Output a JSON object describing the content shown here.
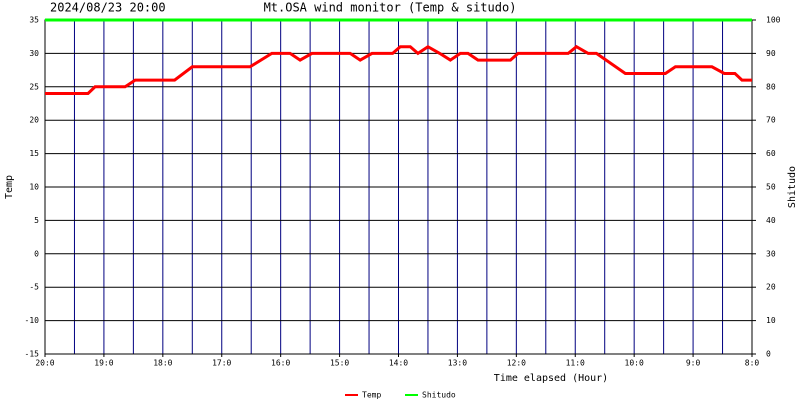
{
  "chart_data": {
    "type": "line",
    "title": "Mt.OSA wind monitor (Temp & situdo)",
    "subtitle": "2024/08/23 20:00",
    "x_label": "Time elapsed (Hour)",
    "y_label": "Temp",
    "y2_label": "Shitudo",
    "xlim": [
      0,
      12
    ],
    "xticks": [
      {
        "value": 0,
        "label": "20:0"
      },
      {
        "value": 1,
        "label": "19:0"
      },
      {
        "value": 2,
        "label": "18:0"
      },
      {
        "value": 3,
        "label": "17:0"
      },
      {
        "value": 4,
        "label": "16:0"
      },
      {
        "value": 5,
        "label": "15:0"
      },
      {
        "value": 6,
        "label": "14:0"
      },
      {
        "value": 7,
        "label": "13:0"
      },
      {
        "value": 8,
        "label": "12:0"
      },
      {
        "value": 9,
        "label": "11:0"
      },
      {
        "value": 10,
        "label": "10:0"
      },
      {
        "value": 11,
        "label": "9:0"
      },
      {
        "value": 12,
        "label": "8:0"
      }
    ],
    "xgrid": [
      0,
      0.5,
      1,
      1.5,
      2,
      2.5,
      3,
      3.5,
      4,
      4.5,
      5,
      5.5,
      6,
      6.5,
      7,
      7.5,
      8,
      8.5,
      9,
      9.5,
      10,
      10.5,
      11,
      11.5,
      12
    ],
    "ylim": [
      -15,
      35
    ],
    "yticks": [
      -15,
      -10,
      -5,
      0,
      5,
      10,
      15,
      20,
      25,
      30,
      35
    ],
    "y2lim": [
      0,
      100
    ],
    "y2ticks": [
      0,
      10,
      20,
      30,
      40,
      50,
      60,
      70,
      80,
      90,
      100
    ],
    "grid": true,
    "series": [
      {
        "name": "Temp",
        "color": "#ff0000",
        "x": [
          0,
          0.73,
          0.85,
          1.36,
          1.53,
          2.2,
          2.5,
          3.48,
          3.85,
          4.16,
          4.33,
          4.53,
          5.18,
          5.35,
          5.55,
          5.9,
          6.03,
          6.2,
          6.33,
          6.5,
          6.7,
          6.88,
          7.05,
          7.18,
          7.35,
          7.9,
          8.03,
          8.88,
          9.02,
          9.22,
          9.36,
          9.85,
          10.53,
          10.7,
          11.32,
          11.53,
          11.71,
          11.83,
          12
        ],
        "values": [
          24,
          24,
          25,
          25,
          26,
          26,
          28,
          28,
          30,
          30,
          29,
          30,
          30,
          29,
          30,
          30,
          31,
          31,
          30,
          31,
          30,
          29,
          30,
          30,
          29,
          29,
          30,
          30,
          31,
          30,
          30,
          27,
          27,
          28,
          28,
          27,
          27,
          26,
          26
        ]
      },
      {
        "name": "Shitudo",
        "color": "#00ff00",
        "axis": "y2",
        "x": [
          0,
          12
        ],
        "values": [
          100,
          100
        ]
      }
    ]
  }
}
